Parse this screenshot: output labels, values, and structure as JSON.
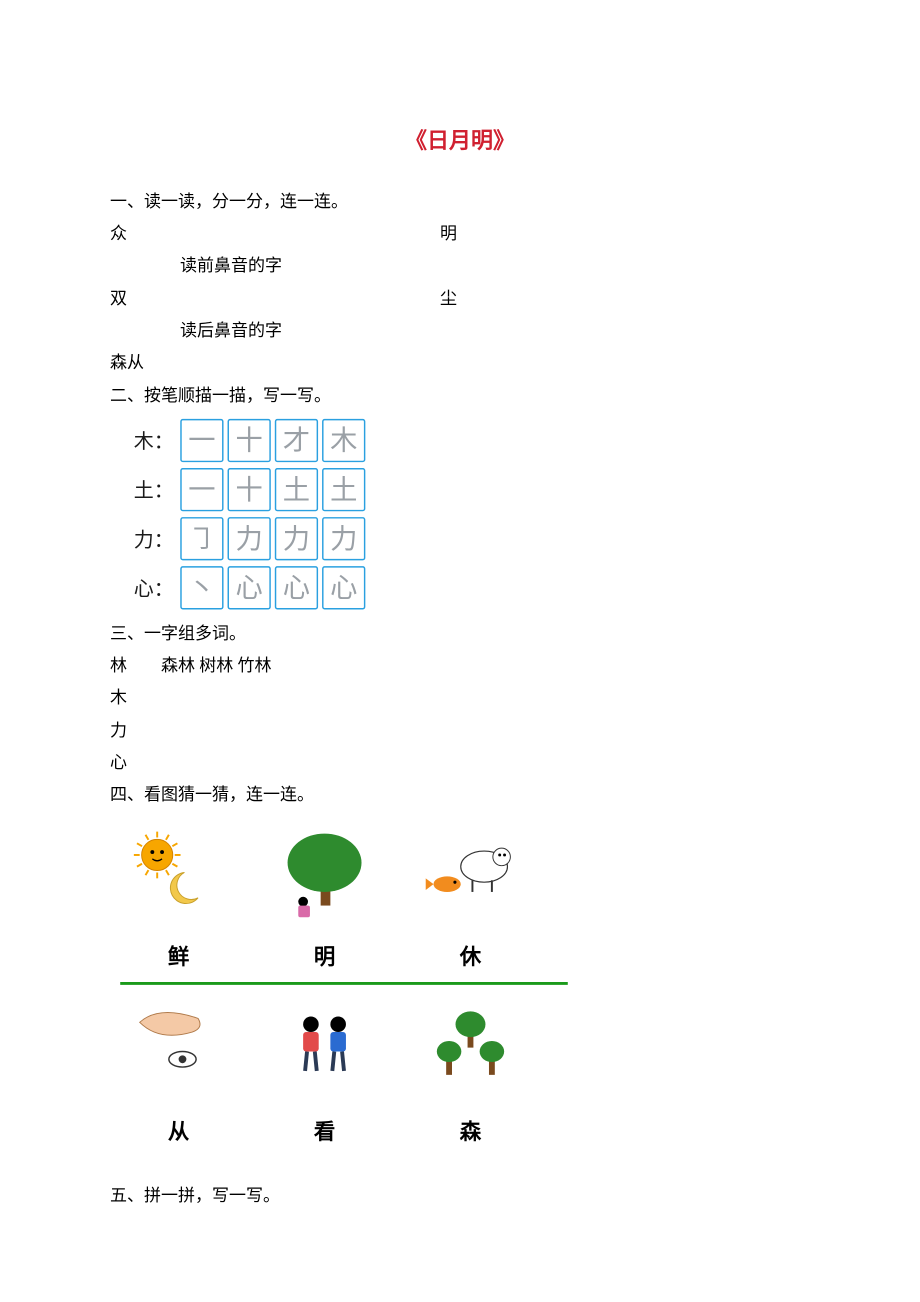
{
  "title": {
    "text": "《日月明》",
    "color": "#d02030"
  },
  "q1": {
    "heading": "一、读一读，分一分，连一连。",
    "row1_left": "众",
    "row1_right": "明",
    "mid1": "读前鼻音的字",
    "row2_left": "双",
    "row2_right": "尘",
    "mid2": "读后鼻音的字",
    "row3": "森从"
  },
  "q2": {
    "heading": "二、按笔顺描一描，写一写。",
    "rows": [
      {
        "label": "木：",
        "strokes": [
          "一",
          "十",
          "才",
          "木"
        ]
      },
      {
        "label": "土：",
        "strokes": [
          "一",
          "十",
          "土",
          "土"
        ]
      },
      {
        "label": "力：",
        "strokes": [
          "㇆",
          "力",
          "力",
          "力"
        ]
      },
      {
        "label": "心：",
        "strokes": [
          "丶",
          "心",
          "心",
          "心"
        ]
      }
    ],
    "box_border_color": "#2aa0e0",
    "stroke_color": "#9aa0a6",
    "label_color": "#1b1b1b",
    "label_fontsize": 22,
    "stroke_fontsize": 30,
    "box_size": 46,
    "box_gap": 6
  },
  "q3": {
    "heading": "三、一字组多词。",
    "lines": [
      "林　　森林  树林  竹林",
      "木",
      "力",
      "心"
    ]
  },
  "q4": {
    "heading": "四、看图猜一猜，连一连。",
    "top_labels": [
      "鲜",
      "明",
      "休"
    ],
    "bottom_labels": [
      "从",
      "看",
      "森"
    ],
    "divider_color": "#1a9a1a",
    "label_fontsize": 22,
    "label_color": "#000000",
    "icons": {
      "top": [
        {
          "name": "sun-moon-icon",
          "sun_color": "#f7a600",
          "moon_color": "#f2c84b"
        },
        {
          "name": "tree-person-icon",
          "tree_color": "#2e8b2e",
          "trunk_color": "#7a4a1e",
          "person_color": "#d96aa8"
        },
        {
          "name": "fish-sheep-icon",
          "fish_color": "#f28c1e",
          "sheep_color": "#ffffff",
          "sheep_outline": "#333333"
        }
      ],
      "bottom": [
        {
          "name": "hand-eye-icon",
          "hand_color": "#f4c9a6",
          "eye_color": "#333333"
        },
        {
          "name": "two-people-icon",
          "p1_color": "#e24a4a",
          "p2_color": "#2a6bd1"
        },
        {
          "name": "three-trees-icon",
          "tree_color": "#2e8b2e",
          "trunk_color": "#7a4a1e"
        }
      ]
    }
  },
  "q5": {
    "heading": "五、拼一拼，写一写。"
  }
}
